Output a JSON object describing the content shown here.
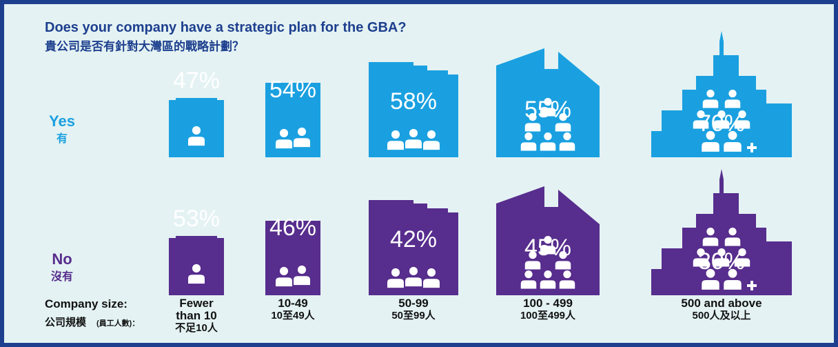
{
  "chart_data": {
    "type": "pictogram",
    "title": "Does your company have a strategic plan for the GBA?",
    "subtitle": "貴公司是否有針對大灣區的戰略計劃？",
    "x_label": "Company size:",
    "x_label_zh": "公司規模",
    "x_label_zh_note": "(員工人數)：",
    "categories": [
      "Fewer than 10",
      "10-49",
      "50-99",
      "100 - 499",
      "500 and above"
    ],
    "categories_zh": [
      "不足10人",
      "10至49人",
      "50至99人",
      "100至499人",
      "500人及以上"
    ],
    "series": [
      {
        "name": "Yes",
        "name_zh": "有",
        "color": "#1aa0e0",
        "values": [
          47,
          54,
          58,
          55,
          70
        ],
        "value_labels": [
          "47%",
          "54%",
          "58%",
          "55%",
          "70%"
        ]
      },
      {
        "name": "No",
        "name_zh": "沒有",
        "color": "#572d8d",
        "values": [
          53,
          46,
          42,
          45,
          30
        ],
        "value_labels": [
          "53%",
          "46%",
          "42%",
          "45%",
          "30%"
        ]
      }
    ]
  }
}
